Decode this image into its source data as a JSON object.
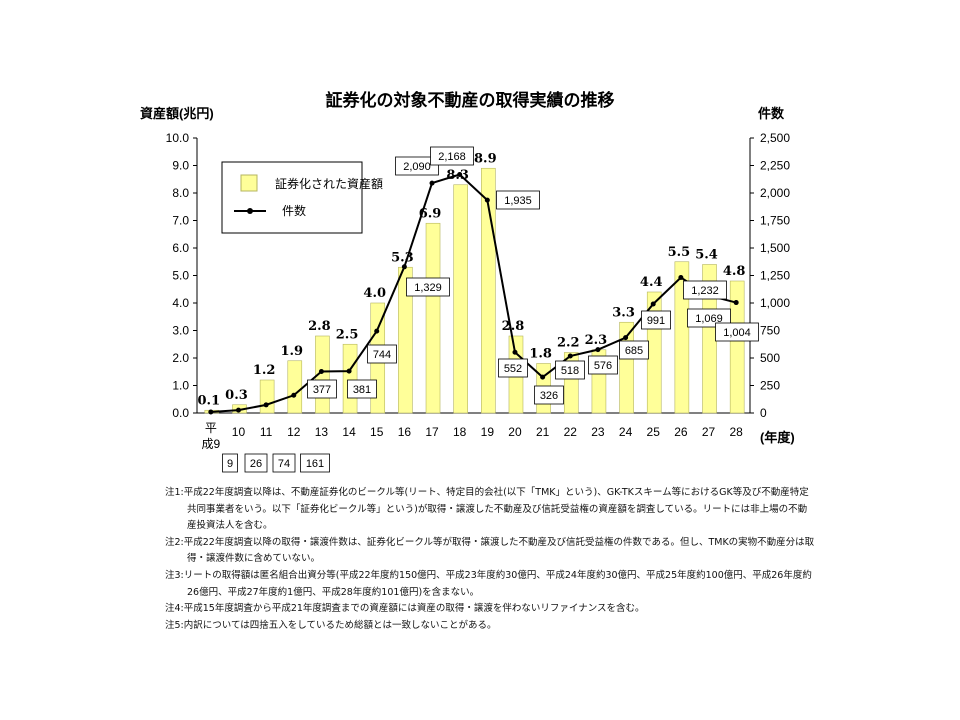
{
  "chart_data": {
    "type": "bar+line",
    "title": "証券化の対象不動産の取得実績の推移",
    "ylabel_left": "資産額(兆円)",
    "ylabel_right": "件数",
    "xlabel": "(年度)",
    "categories": [
      "平成9",
      "10",
      "11",
      "12",
      "13",
      "14",
      "15",
      "16",
      "17",
      "18",
      "19",
      "20",
      "21",
      "22",
      "23",
      "24",
      "25",
      "26",
      "27",
      "28"
    ],
    "left_ylim": [
      0,
      10
    ],
    "left_ticks": [
      "0.0",
      "1.0",
      "2.0",
      "3.0",
      "4.0",
      "5.0",
      "6.0",
      "7.0",
      "8.0",
      "9.0",
      "10.0"
    ],
    "right_ylim": [
      0,
      2500
    ],
    "right_ticks": [
      "0",
      "250",
      "500",
      "750",
      "1,000",
      "1,250",
      "1,500",
      "1,750",
      "2,000",
      "2,250",
      "2,500"
    ],
    "series": [
      {
        "name": "証券化された資産額",
        "type": "bar",
        "axis": "left",
        "color": "#ffff99",
        "values": [
          0.1,
          0.3,
          1.2,
          1.9,
          2.8,
          2.5,
          4.0,
          5.3,
          6.9,
          8.3,
          8.9,
          2.8,
          1.8,
          2.2,
          2.3,
          3.3,
          4.4,
          5.5,
          5.4,
          4.8
        ],
        "labels": [
          "0.1",
          "0.3",
          "1.2",
          "1.9",
          "2.8",
          "2.5",
          "4.0",
          "5.3",
          "6.9",
          "8.3",
          "8.9",
          "2.8",
          "1.8",
          "2.2",
          "2.3",
          "3.3",
          "4.4",
          "5.5",
          "5.4",
          "4.8"
        ]
      },
      {
        "name": "件数",
        "type": "line",
        "axis": "right",
        "color": "#000000",
        "values": [
          9,
          26,
          74,
          161,
          377,
          381,
          744,
          1329,
          2090,
          2168,
          1935,
          552,
          326,
          518,
          576,
          685,
          991,
          1232,
          1069,
          1004
        ],
        "labels": [
          "9",
          "26",
          "74",
          "161",
          "377",
          "381",
          "744",
          "1,329",
          "2,090",
          "2,168",
          "1,935",
          "552",
          "326",
          "518",
          "576",
          "685",
          "991",
          "1,232",
          "1,069",
          "1,004"
        ]
      }
    ],
    "legend": "top-left",
    "grid": false
  },
  "notes": [
    "注1:平成22年度調査以降は、不動産証券化のビークル等(リート、特定目的会社(以下「TMK」という)、GK-TKスキーム等におけるGK等及び不動産特定共同事業者をいう。以下「証券化ビークル等」という)が取得・譲渡した不動産及び信託受益権の資産額を調査している。リートには非上場の不動産投資法人を含む。",
    "注2:平成22年度調査以降の取得・譲渡件数は、証券化ビークル等が取得・譲渡した不動産及び信託受益権の件数である。但し、TMKの実物不動産分は取得・譲渡件数に含めていない。",
    "注3:リートの取得額は匿名組合出資分等(平成22年度約150億円、平成23年度約30億円、平成24年度約30億円、平成25年度約100億円、平成26年度約26億円、平成27年度約1億円、平成28年度約101億円)を含まない。",
    "注4:平成15年度調査から平成21年度調査までの資産額には資産の取得・譲渡を伴わないリファイナンスを含む。",
    "注5:内訳については四捨五入をしているため総額とは一致しないことがある。"
  ]
}
